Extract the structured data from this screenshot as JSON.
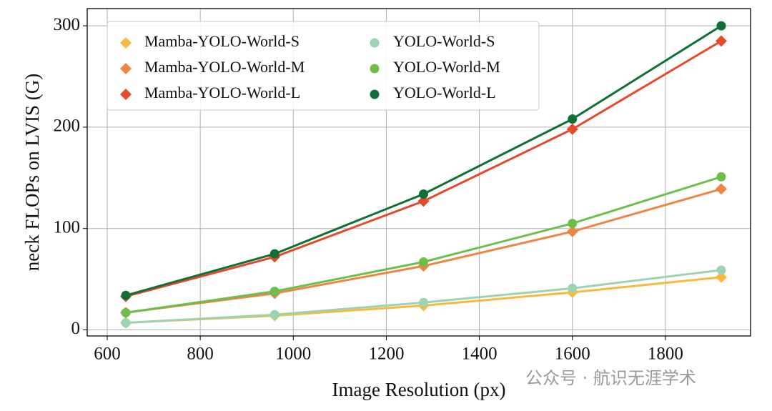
{
  "chart_data": {
    "type": "line",
    "xlabel": "Image Resolution (px)",
    "ylabel": "neck FLOPs on LVIS (G)",
    "x": [
      640,
      960,
      1280,
      1600,
      1920
    ],
    "series": [
      {
        "name": "Mamba-YOLO-World-S",
        "color": "#f9b93f",
        "marker": "diamond",
        "values": [
          7,
          14,
          24,
          37,
          52
        ]
      },
      {
        "name": "Mamba-YOLO-World-M",
        "color": "#ef8446",
        "marker": "diamond",
        "values": [
          17,
          36,
          63,
          97,
          139
        ]
      },
      {
        "name": "Mamba-YOLO-World-L",
        "color": "#e5482a",
        "marker": "diamond",
        "values": [
          33,
          72,
          127,
          198,
          285
        ]
      },
      {
        "name": "YOLO-World-S",
        "color": "#9dd3b0",
        "marker": "circle",
        "values": [
          7,
          15,
          27,
          41,
          59
        ]
      },
      {
        "name": "YOLO-World-M",
        "color": "#6bbf4a",
        "marker": "circle",
        "values": [
          17,
          38,
          67,
          105,
          151
        ]
      },
      {
        "name": "YOLO-World-L",
        "color": "#0f7035",
        "marker": "circle",
        "values": [
          34,
          75,
          134,
          208,
          300
        ]
      }
    ],
    "xlim": [
      557,
      1983
    ],
    "xticks": [
      600,
      800,
      1000,
      1200,
      1400,
      1600,
      1800
    ],
    "ylim": [
      -6,
      317
    ],
    "yticks": [
      0,
      100,
      200,
      300
    ],
    "grid": true,
    "legend": "upper left",
    "watermark": "公众号 · 航识无涯学术"
  }
}
